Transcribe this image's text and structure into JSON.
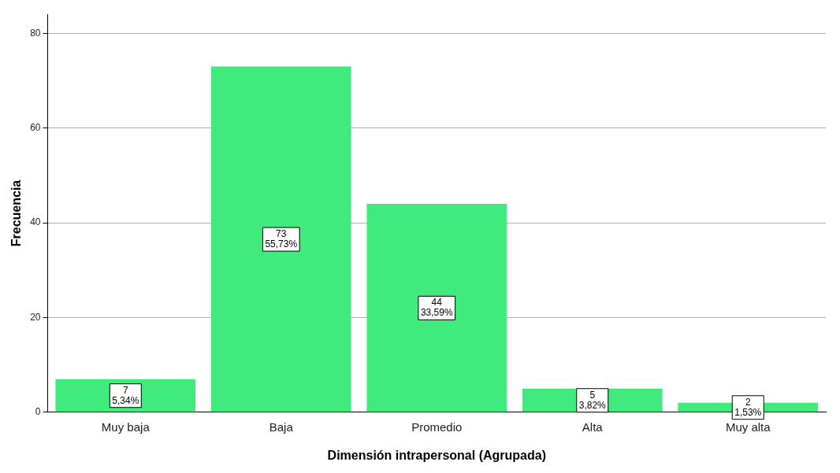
{
  "chart_data": {
    "type": "bar",
    "xlabel": "Dimensión intrapersonal (Agrupada)",
    "ylabel": "Frecuencia",
    "categories": [
      "Muy baja",
      "Baja",
      "Promedio",
      "Alta",
      "Muy alta"
    ],
    "values": [
      7,
      73,
      44,
      5,
      2
    ],
    "color": "#40ea7c",
    "value_labels": [
      "7\n5,34%",
      "73\n55,73%",
      "44\n33,59%",
      "5\n3,82%",
      "2\n1,53%"
    ],
    "ylim": [
      0,
      84
    ],
    "yticks": [
      0,
      20,
      40,
      60,
      80
    ],
    "grid": "y",
    "legend": false
  }
}
